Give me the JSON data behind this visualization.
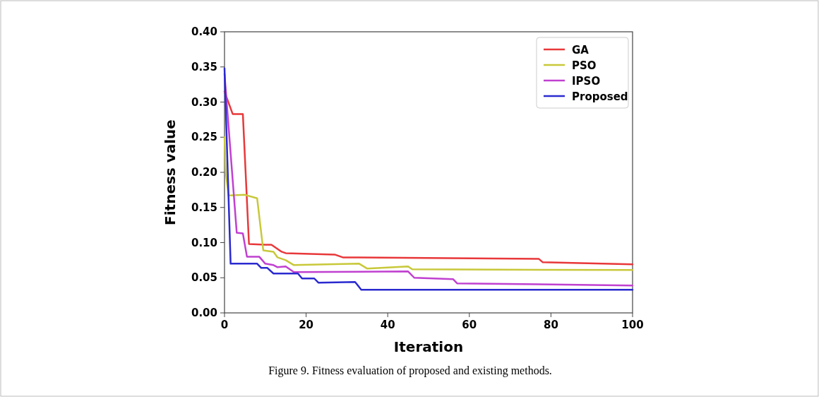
{
  "chart_data": {
    "type": "line",
    "xlabel": "Iteration",
    "ylabel": "Fitness value",
    "xlim": [
      0,
      100
    ],
    "xticks": [
      0,
      20,
      40,
      60,
      80,
      100
    ],
    "ylim": [
      0,
      0.4
    ],
    "yticks": [
      {
        "value": 0,
        "label": "0.00"
      },
      {
        "value": 0.05,
        "label": "0.05"
      },
      {
        "value": 0.1,
        "label": "0.10"
      },
      {
        "value": 0.15,
        "label": "0.15"
      },
      {
        "value": 0.2,
        "label": "0.20"
      },
      {
        "value": 0.25,
        "label": "0.25"
      },
      {
        "value": 0.3,
        "label": "0.30"
      },
      {
        "value": 0.35,
        "label": "0.35"
      },
      {
        "value": 0.4,
        "label": "0.40"
      }
    ],
    "grid": false,
    "legend": "top right",
    "marker": "none",
    "line_style": "solid",
    "annotations": [
      "Figure 9. Fitness evaluation of proposed and existing methods."
    ],
    "series": [
      {
        "name": "GA",
        "color": "#e8383a",
        "x": [
          0,
          2,
          4.5,
          6,
          10,
          11.5,
          14,
          15,
          27,
          29,
          77,
          78,
          100
        ],
        "values": [
          0.315,
          0.283,
          0.283,
          0.098,
          0.097,
          0.097,
          0.087,
          0.085,
          0.083,
          0.079,
          0.077,
          0.072,
          0.069
        ]
      },
      {
        "name": "PSO",
        "color": "#c8c83a",
        "x": [
          0,
          0.3,
          1,
          5,
          8,
          9.5,
          12,
          13,
          15,
          17,
          33,
          35,
          45,
          46,
          100
        ],
        "values": [
          0.25,
          0.2,
          0.167,
          0.168,
          0.163,
          0.089,
          0.087,
          0.079,
          0.075,
          0.068,
          0.07,
          0.063,
          0.066,
          0.062,
          0.061
        ]
      },
      {
        "name": "IPSO",
        "color": "#c040d0",
        "x": [
          0,
          3,
          4.5,
          5.5,
          8.5,
          10,
          12,
          13,
          15,
          17,
          45,
          46.5,
          56,
          57,
          100
        ],
        "values": [
          0.34,
          0.114,
          0.113,
          0.08,
          0.08,
          0.07,
          0.068,
          0.065,
          0.066,
          0.058,
          0.059,
          0.05,
          0.048,
          0.042,
          0.039
        ]
      },
      {
        "name": "Proposed",
        "color": "#2a2ad0",
        "x": [
          0,
          1.5,
          8,
          9,
          10.5,
          12,
          18,
          19,
          22,
          23,
          32,
          33.5,
          100
        ],
        "values": [
          0.348,
          0.07,
          0.07,
          0.064,
          0.064,
          0.056,
          0.056,
          0.049,
          0.049,
          0.043,
          0.044,
          0.033,
          0.033
        ]
      }
    ]
  }
}
